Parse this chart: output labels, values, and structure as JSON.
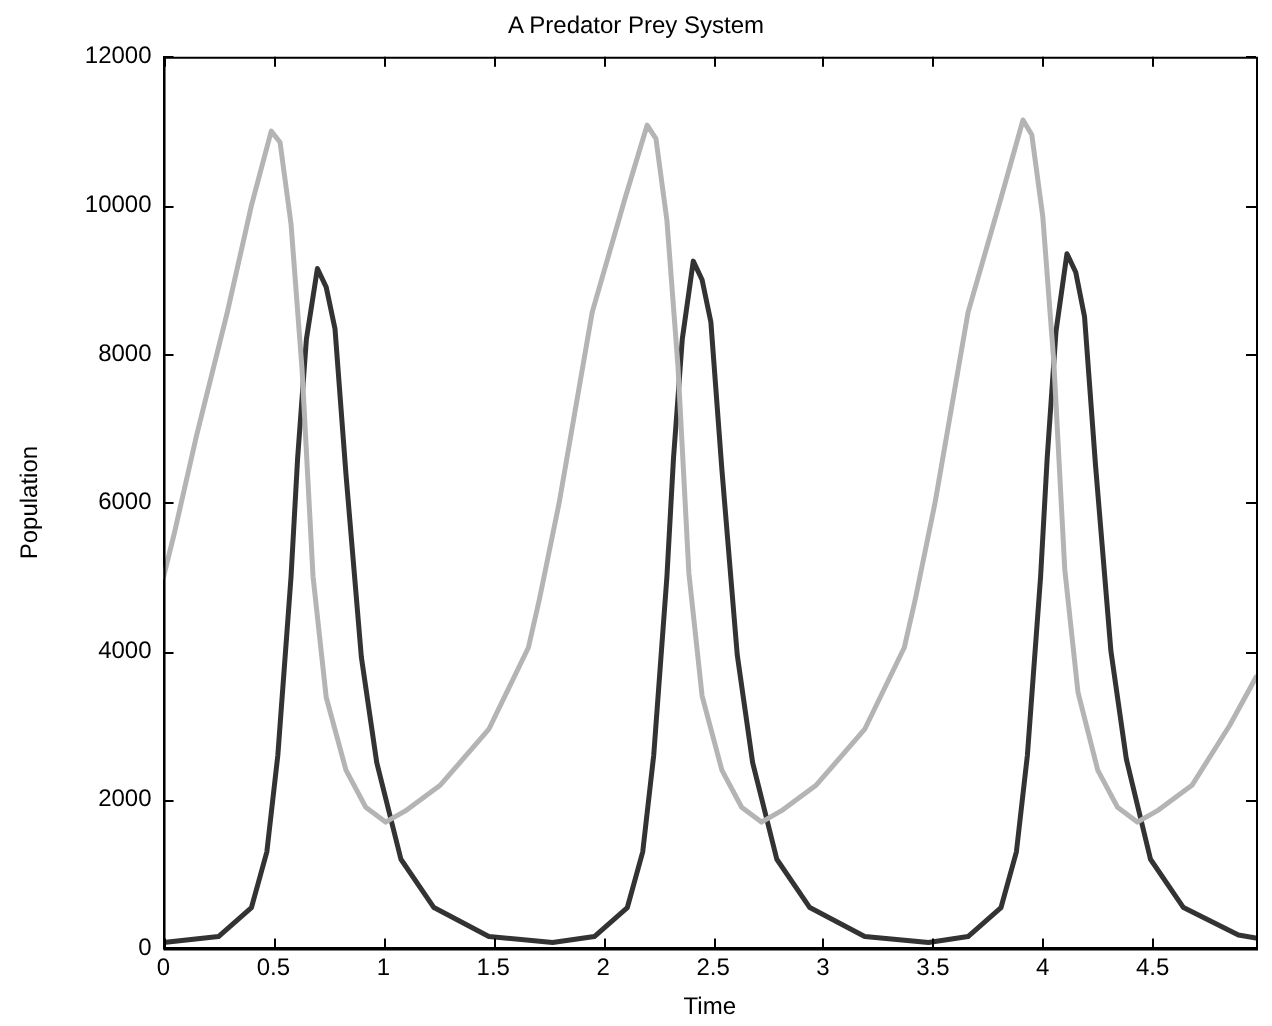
{
  "chart_data": {
    "type": "line",
    "title": "A Predator Prey System",
    "xlabel": "Time",
    "ylabel": "Population",
    "xlim": [
      0,
      4.97
    ],
    "xticks": [
      0,
      0.5,
      1,
      1.5,
      2,
      2.5,
      3,
      3.5,
      4,
      4.5
    ],
    "ylim": [
      0,
      12000
    ],
    "yticks": [
      0,
      2000,
      4000,
      6000,
      8000,
      10000,
      12000
    ],
    "grid": false,
    "legend": false,
    "marker": "none",
    "line_style": "solid",
    "series": [
      {
        "color": "#b4b4b4",
        "x": [
          0,
          0.05,
          0.15,
          0.29,
          0.4,
          0.49,
          0.53,
          0.58,
          0.63,
          0.68,
          0.74,
          0.83,
          0.92,
          1.01,
          1.1,
          1.26,
          1.48,
          1.66,
          1.71,
          1.8,
          1.95,
          2.1,
          2.2,
          2.24,
          2.29,
          2.34,
          2.39,
          2.45,
          2.54,
          2.63,
          2.72,
          2.81,
          2.97,
          3.19,
          3.37,
          3.42,
          3.51,
          3.66,
          3.81,
          3.91,
          3.95,
          4.0,
          4.05,
          4.1,
          4.16,
          4.25,
          4.34,
          4.43,
          4.52,
          4.68,
          4.85,
          4.97
        ],
        "values": [
          5000,
          5600,
          6900,
          8560,
          10000,
          11000,
          10850,
          9750,
          7800,
          5010,
          3380,
          2400,
          1900,
          1700,
          1850,
          2200,
          2950,
          4050,
          4700,
          6000,
          8560,
          10100,
          11080,
          10900,
          9800,
          7850,
          5050,
          3400,
          2400,
          1900,
          1700,
          1850,
          2200,
          2950,
          4050,
          4700,
          6000,
          8560,
          10100,
          11150,
          10950,
          9850,
          7900,
          5100,
          3450,
          2400,
          1900,
          1700,
          1850,
          2200,
          3000,
          3650
        ]
      },
      {
        "color": "#333333",
        "x": [
          0,
          0.25,
          0.4,
          0.47,
          0.52,
          0.58,
          0.61,
          0.65,
          0.7,
          0.74,
          0.78,
          0.83,
          0.9,
          0.97,
          1.08,
          1.23,
          1.48,
          1.77,
          1.96,
          2.11,
          2.18,
          2.23,
          2.29,
          2.32,
          2.36,
          2.41,
          2.45,
          2.49,
          2.54,
          2.61,
          2.68,
          2.79,
          2.94,
          3.19,
          3.48,
          3.66,
          3.81,
          3.88,
          3.93,
          3.99,
          4.02,
          4.06,
          4.11,
          4.15,
          4.19,
          4.24,
          4.31,
          4.38,
          4.49,
          4.64,
          4.89,
          4.97
        ],
        "values": [
          80,
          160,
          550,
          1300,
          2600,
          5000,
          6600,
          8200,
          9150,
          8900,
          8340,
          6380,
          3920,
          2500,
          1200,
          550,
          160,
          80,
          160,
          550,
          1300,
          2600,
          5000,
          6600,
          8200,
          9250,
          9000,
          8430,
          6450,
          3950,
          2500,
          1200,
          550,
          160,
          80,
          160,
          550,
          1300,
          2600,
          5000,
          6600,
          8300,
          9350,
          9100,
          8500,
          6500,
          4000,
          2550,
          1200,
          550,
          180,
          140
        ]
      }
    ]
  }
}
